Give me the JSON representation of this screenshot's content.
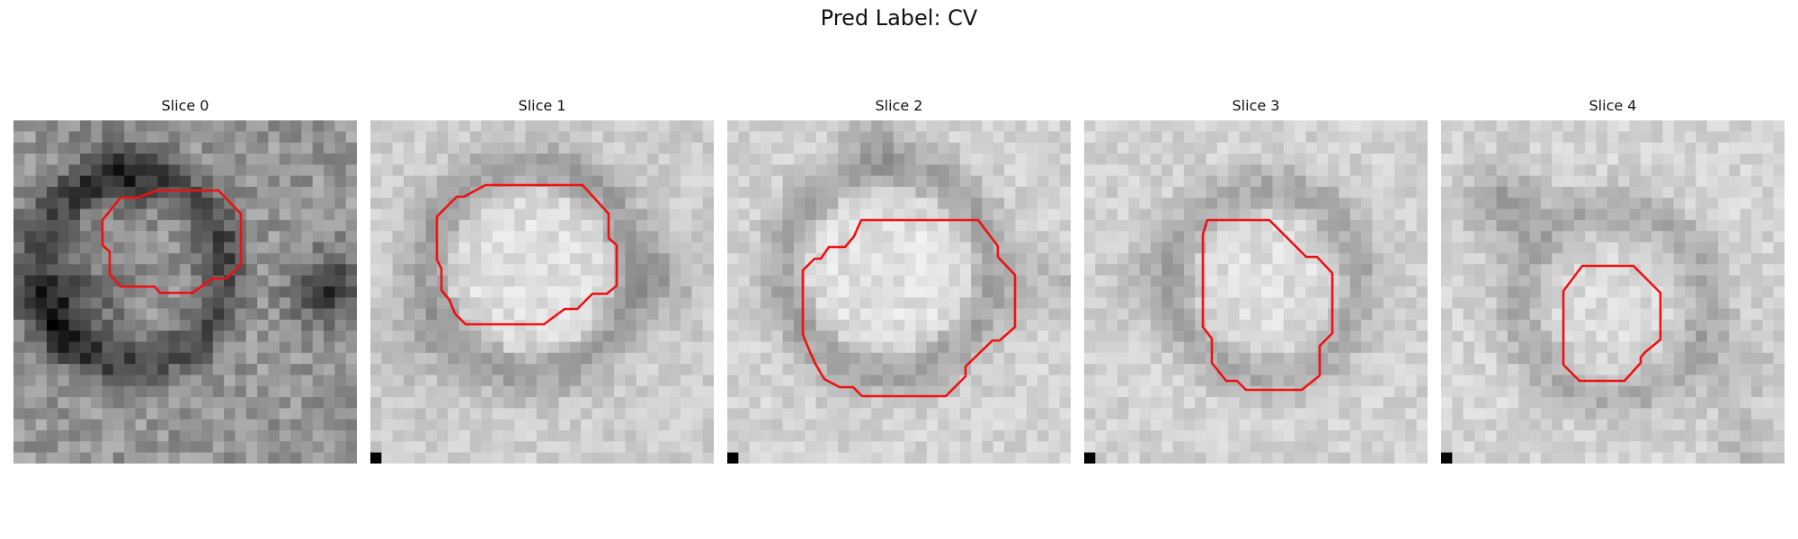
{
  "figure": {
    "title": "Pred Label: CV"
  },
  "outline_color": "#ee1111",
  "panels": [
    {
      "label": "Slice 0",
      "marker": false
    },
    {
      "label": "Slice 1",
      "marker": true
    },
    {
      "label": "Slice 2",
      "marker": true
    },
    {
      "label": "Slice 3",
      "marker": true
    },
    {
      "label": "Slice 4",
      "marker": true
    }
  ]
}
